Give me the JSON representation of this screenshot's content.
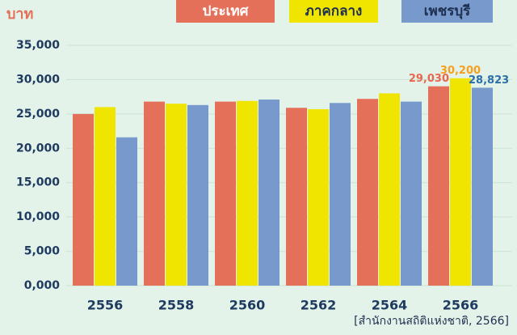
{
  "chart_data": {
    "type": "bar",
    "y_label": "บาท",
    "source": "[สำนักงานสถิติแห่งชาติ, 2566]",
    "categories": [
      "2556",
      "2558",
      "2560",
      "2562",
      "2564",
      "2566"
    ],
    "series": [
      {
        "name": "ประเทศ",
        "color": "#e5705a",
        "legend_text_color": "#ffffff",
        "label_color": "#e8684f",
        "values": [
          25000,
          26800,
          26800,
          25900,
          27200,
          29030
        ],
        "value_labels": [
          null,
          null,
          null,
          null,
          null,
          "29,030"
        ]
      },
      {
        "name": "ภาคกลาง",
        "color": "#f0e500",
        "legend_text_color": "#1f2f4f",
        "label_color": "#f5a020",
        "values": [
          26000,
          26500,
          26900,
          25700,
          28000,
          30200
        ],
        "value_labels": [
          null,
          null,
          null,
          null,
          null,
          "30,200"
        ]
      },
      {
        "name": "เพชรบุรี",
        "color": "#7799cc",
        "legend_text_color": "#1f2f4f",
        "label_color": "#2b6fa8",
        "values": [
          21600,
          26300,
          27100,
          26600,
          26800,
          28823
        ],
        "value_labels": [
          null,
          null,
          null,
          null,
          null,
          "28,823"
        ]
      }
    ],
    "ylim": [
      0,
      35000
    ],
    "yticks": [
      {
        "value": 0,
        "label": "0,000"
      },
      {
        "value": 5000,
        "label": "5,000"
      },
      {
        "value": 10000,
        "label": "10,000"
      },
      {
        "value": 15000,
        "label": "15,000"
      },
      {
        "value": 20000,
        "label": "20,000"
      },
      {
        "value": 25000,
        "label": "25,000"
      },
      {
        "value": 30000,
        "label": "30,000"
      },
      {
        "value": 35000,
        "label": "35,000"
      }
    ],
    "grid": true
  }
}
